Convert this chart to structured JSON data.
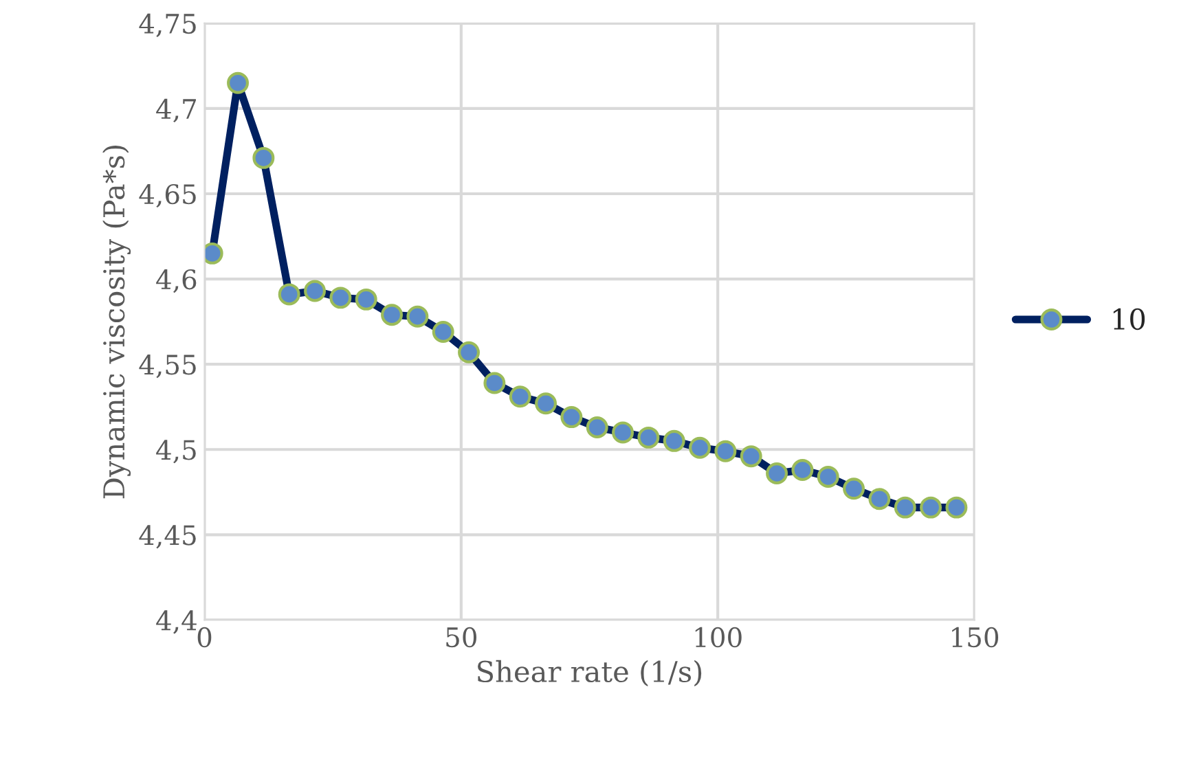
{
  "chart_data": {
    "type": "line",
    "xlabel": "Shear rate (1/s)",
    "ylabel": "Dynamic viscosity (Pa*s)",
    "x": [
      1.5,
      6.5,
      11.5,
      16.5,
      21.5,
      26.5,
      31.5,
      36.5,
      41.5,
      46.5,
      51.5,
      56.5,
      61.5,
      66.5,
      71.5,
      76.5,
      81.5,
      86.5,
      91.5,
      96.5,
      101.5,
      106.5,
      111.5,
      116.5,
      121.5,
      126.5,
      131.5,
      136.5,
      141.5,
      146.5
    ],
    "series": [
      {
        "name": "10",
        "color": "#002060",
        "values": [
          4.615,
          4.715,
          4.671,
          4.591,
          4.593,
          4.589,
          4.588,
          4.579,
          4.578,
          4.569,
          4.557,
          4.539,
          4.531,
          4.527,
          4.519,
          4.513,
          4.51,
          4.507,
          4.505,
          4.501,
          4.499,
          4.496,
          4.486,
          4.488,
          4.484,
          4.477,
          4.471,
          4.466,
          4.466,
          4.466
        ]
      }
    ],
    "xlim": [
      0,
      150
    ],
    "xticks": [
      0,
      50,
      100,
      150
    ],
    "ylim": [
      4.4,
      4.75
    ],
    "yticks": [
      {
        "value": 4.4,
        "label": "4,4"
      },
      {
        "value": 4.45,
        "label": "4,45"
      },
      {
        "value": 4.5,
        "label": "4,5"
      },
      {
        "value": 4.55,
        "label": "4,55"
      },
      {
        "value": 4.6,
        "label": "4,6"
      },
      {
        "value": 4.65,
        "label": "4,65"
      },
      {
        "value": 4.7,
        "label": "4,7"
      },
      {
        "value": 4.75,
        "label": "4,75"
      }
    ],
    "grid": true,
    "legend": "right",
    "marker": "circle",
    "line_style": "solid"
  }
}
